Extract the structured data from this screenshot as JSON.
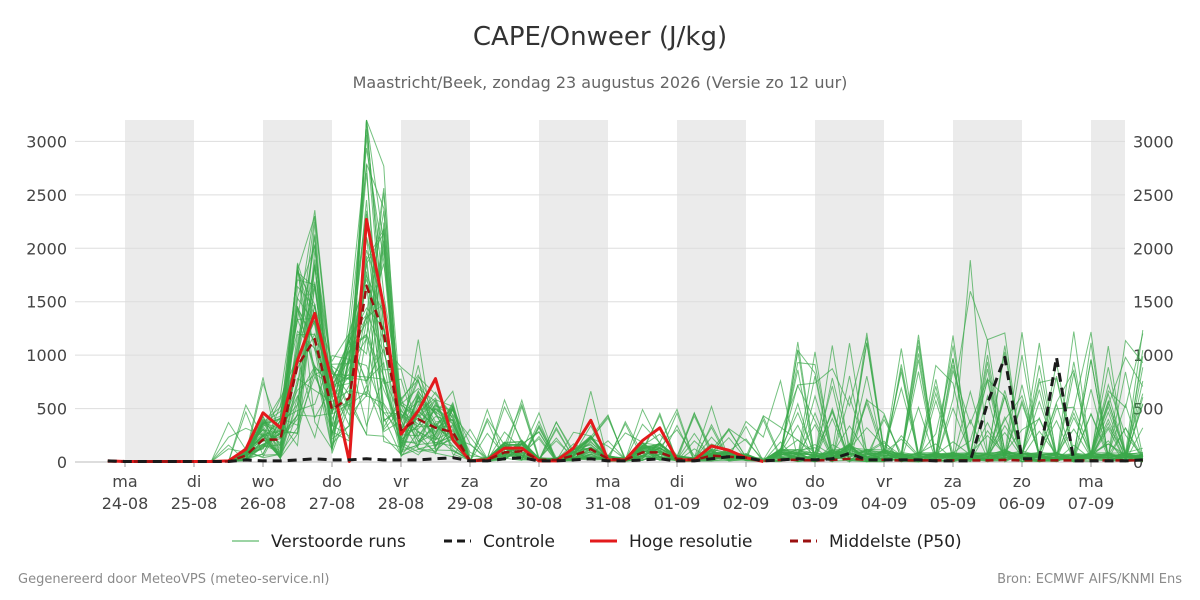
{
  "title": "CAPE/Onweer (J/kg)",
  "subtitle": "Maastricht/Beek, zondag 23 augustus 2026 (Versie zo 12 uur)",
  "footer_left": "Gegenereerd door MeteoVPS (meteo-service.nl)",
  "footer_right": "Bron: ECMWF AIFS/KNMI Ens",
  "colors": {
    "ensemble": "#3aa84a",
    "control": "#1a1a1a",
    "hires": "#e31a1c",
    "median": "#9b1010",
    "weekend_band": "#ebebeb",
    "grid": "#dddddd"
  },
  "chart_data": {
    "type": "line",
    "ylim": [
      0,
      3200
    ],
    "xlim_days": [
      -0.25,
      14.75
    ],
    "yticks": [
      0,
      500,
      1000,
      1500,
      2000,
      2500,
      3000
    ],
    "grid": true,
    "legend_position": "bottom",
    "x_ticks": [
      {
        "day": "ma",
        "date": "24-08"
      },
      {
        "day": "di",
        "date": "25-08"
      },
      {
        "day": "wo",
        "date": "26-08"
      },
      {
        "day": "do",
        "date": "27-08"
      },
      {
        "day": "vr",
        "date": "28-08"
      },
      {
        "day": "za",
        "date": "29-08"
      },
      {
        "day": "zo",
        "date": "30-08"
      },
      {
        "day": "ma",
        "date": "31-08"
      },
      {
        "day": "di",
        "date": "01-09"
      },
      {
        "day": "wo",
        "date": "02-09"
      },
      {
        "day": "do",
        "date": "03-09"
      },
      {
        "day": "vr",
        "date": "04-09"
      },
      {
        "day": "za",
        "date": "05-09"
      },
      {
        "day": "zo",
        "date": "06-09"
      },
      {
        "day": "ma",
        "date": "07-09"
      }
    ],
    "shaded_days": [
      0,
      2,
      4,
      6,
      8,
      10,
      12,
      14
    ],
    "legend": [
      {
        "label": "Verstoorde runs",
        "style": "thin-solid",
        "color": "#3aa84a"
      },
      {
        "label": "Controle",
        "style": "dashed",
        "color": "#1a1a1a"
      },
      {
        "label": "Hoge resolutie",
        "style": "thick-solid",
        "color": "#e31a1c"
      },
      {
        "label": "Middelste (P50)",
        "style": "dashed",
        "color": "#9b1010"
      }
    ],
    "hires": {
      "name": "Hoge resolutie",
      "x": [
        -0.25,
        0,
        0.25,
        0.5,
        0.75,
        1,
        1.25,
        1.5,
        1.75,
        2,
        2.25,
        2.5,
        2.75,
        3,
        3.25,
        3.5,
        3.75,
        4,
        4.25,
        4.5,
        4.75,
        5,
        5.25,
        5.5,
        5.75,
        6,
        6.25,
        6.5,
        6.75,
        7,
        7.25,
        7.5,
        7.75,
        8,
        8.25,
        8.5,
        8.75,
        9,
        9.25
      ],
      "values": [
        10,
        5,
        5,
        5,
        5,
        5,
        5,
        10,
        120,
        460,
        320,
        950,
        1390,
        750,
        5,
        2270,
        1450,
        260,
        480,
        780,
        210,
        10,
        20,
        130,
        130,
        10,
        10,
        130,
        390,
        20,
        20,
        200,
        320,
        20,
        20,
        150,
        110,
        40,
        5
      ]
    },
    "median": {
      "name": "Middelste (P50)",
      "x": [
        -0.25,
        0,
        0.25,
        0.5,
        0.75,
        1,
        1.25,
        1.5,
        1.75,
        2,
        2.25,
        2.5,
        2.75,
        3,
        3.25,
        3.5,
        3.75,
        4,
        4.25,
        4.5,
        4.75,
        5,
        5.25,
        5.5,
        5.75,
        6,
        6.25,
        6.5,
        6.75,
        7,
        7.25,
        7.5,
        7.75,
        8,
        8.25,
        8.5,
        8.75,
        9,
        9.25,
        9.5,
        9.75,
        10,
        10.25,
        10.5,
        10.75,
        11,
        11.25,
        11.5,
        11.75,
        12,
        12.25,
        12.5,
        12.75,
        13,
        13.25,
        13.5,
        13.75,
        14,
        14.25,
        14.5,
        14.75
      ],
      "values": [
        5,
        5,
        5,
        5,
        5,
        5,
        5,
        5,
        60,
        210,
        210,
        900,
        1150,
        490,
        600,
        1650,
        1200,
        300,
        400,
        320,
        280,
        10,
        20,
        90,
        100,
        20,
        20,
        60,
        120,
        30,
        20,
        90,
        90,
        30,
        20,
        60,
        50,
        40,
        10,
        20,
        20,
        15,
        20,
        30,
        20,
        20,
        15,
        15,
        15,
        15,
        15,
        15,
        20,
        15,
        15,
        15,
        15,
        15,
        15,
        15,
        15
      ]
    },
    "control": {
      "name": "Controle",
      "x": [
        -0.25,
        0,
        0.25,
        0.5,
        0.75,
        1,
        1.25,
        1.5,
        1.75,
        2,
        2.25,
        2.5,
        2.75,
        3,
        3.25,
        3.5,
        3.75,
        4,
        4.25,
        4.5,
        4.75,
        5,
        5.25,
        5.5,
        5.75,
        6,
        6.25,
        6.5,
        6.75,
        7,
        7.25,
        7.5,
        7.75,
        8,
        8.25,
        8.5,
        8.75,
        9,
        9.25,
        9.5,
        9.75,
        10,
        10.25,
        10.5,
        10.75,
        11,
        11.25,
        11.5,
        11.75,
        12,
        12.25,
        12.5,
        12.75,
        13,
        13.25,
        13.5,
        13.75,
        14,
        14.25,
        14.5,
        14.75
      ],
      "values": [
        10,
        5,
        5,
        5,
        5,
        5,
        5,
        5,
        20,
        10,
        10,
        20,
        30,
        20,
        20,
        30,
        20,
        20,
        20,
        30,
        40,
        10,
        10,
        30,
        40,
        10,
        10,
        20,
        30,
        10,
        10,
        20,
        30,
        10,
        10,
        30,
        50,
        40,
        10,
        20,
        30,
        20,
        30,
        80,
        20,
        20,
        20,
        20,
        10,
        10,
        10,
        550,
        980,
        30,
        30,
        980,
        10,
        10,
        10,
        10,
        20
      ]
    },
    "ensemble_note": "50 verstoorde runs, spread grows after day 9"
  }
}
